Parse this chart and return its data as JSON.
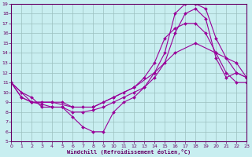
{
  "xlabel": "Windchill (Refroidissement éolien,°C)",
  "xlim": [
    0,
    23
  ],
  "ylim": [
    5,
    19
  ],
  "xticks": [
    0,
    1,
    2,
    3,
    4,
    5,
    6,
    7,
    8,
    9,
    10,
    11,
    12,
    13,
    14,
    15,
    16,
    17,
    18,
    19,
    20,
    21,
    22,
    23
  ],
  "yticks": [
    5,
    6,
    7,
    8,
    9,
    10,
    11,
    12,
    13,
    14,
    15,
    16,
    17,
    18,
    19
  ],
  "bg_color": "#c8eef0",
  "line_color": "#990099",
  "grid_color": "#9bbfbf",
  "line1_x": [
    0,
    1,
    2,
    3,
    4,
    5,
    6,
    7,
    8,
    9,
    10,
    11,
    12,
    13,
    14,
    15,
    16,
    17,
    18,
    19,
    20,
    21,
    22,
    23
  ],
  "line1_y": [
    11,
    10,
    9.5,
    8.5,
    8.5,
    8.5,
    7.5,
    6.5,
    6,
    6,
    8,
    9,
    9.5,
    10.5,
    12,
    14,
    18,
    19,
    19,
    18.5,
    15.5,
    13.5,
    12,
    11.5
  ],
  "line2_x": [
    0,
    1,
    2,
    3,
    4,
    5,
    6,
    7,
    8,
    9,
    10,
    11,
    12,
    13,
    14,
    15,
    16,
    17,
    18,
    19,
    20,
    21,
    22,
    23
  ],
  "line2_y": [
    11,
    9.5,
    9,
    8.8,
    8.5,
    8.5,
    8,
    8,
    8.2,
    8.5,
    9,
    9.5,
    10,
    10.5,
    11.5,
    13,
    16,
    18,
    18.5,
    17.5,
    13.5,
    11.5,
    12,
    11.5
  ],
  "line3_x": [
    0,
    1,
    2,
    3,
    4,
    5,
    6,
    7,
    8,
    9,
    10,
    11,
    12,
    13,
    14,
    15,
    16,
    17,
    18,
    19,
    20,
    21,
    22,
    23
  ],
  "line3_y": [
    11,
    9.5,
    9,
    9,
    9,
    9,
    8.5,
    8.5,
    8.5,
    9,
    9.5,
    10,
    10.5,
    11.5,
    13,
    15.5,
    16.5,
    17,
    17,
    16,
    14,
    12,
    11,
    11
  ],
  "line4_x": [
    0,
    2,
    4,
    6,
    8,
    10,
    12,
    14,
    16,
    18,
    20,
    22,
    23
  ],
  "line4_y": [
    11,
    9,
    9,
    8.5,
    8.5,
    9.5,
    10.5,
    12,
    14,
    15,
    14,
    13,
    11.5
  ]
}
